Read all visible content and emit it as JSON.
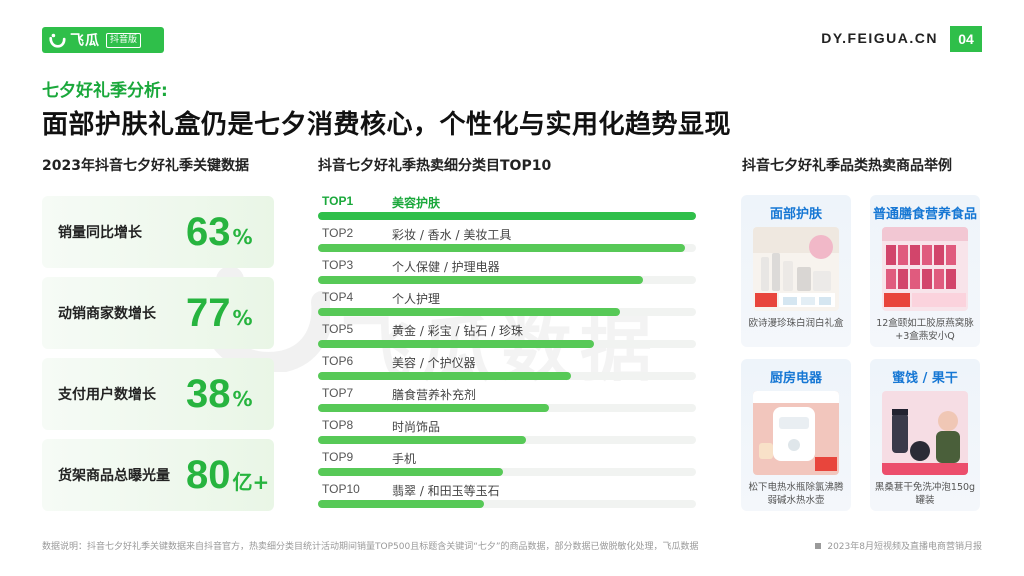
{
  "header": {
    "logo_name": "飞瓜",
    "logo_sub": "抖音版",
    "site": "DY.FEIGUA.CN",
    "page_number": "04",
    "accent": "#2fbf4a"
  },
  "kicker": "七夕好礼季分析:",
  "headline": "面部护肤礼盒仍是七夕消费核心，个性化与实用化趋势显现",
  "watermark": "飞瓜数据",
  "stats": {
    "title": "2023年抖音七夕好礼季关键数据",
    "items": [
      {
        "label": "销量同比增长",
        "value": "63",
        "unit": "%"
      },
      {
        "label": "动销商家数增长",
        "value": "77",
        "unit": "%"
      },
      {
        "label": "支付用户数增长",
        "value": "38",
        "unit": "%"
      },
      {
        "label": "货架商品总曝光量",
        "value": "80",
        "unit": "亿+"
      }
    ]
  },
  "ranking": {
    "title": "抖音七夕好礼季热卖细分类目TOP10",
    "items": [
      {
        "rank": "TOP1",
        "name": "美容护肤",
        "level": 1.0
      },
      {
        "rank": "TOP2",
        "name": "彩妆 / 香水 / 美妆工具",
        "level": 0.97
      },
      {
        "rank": "TOP3",
        "name": "个人保健 / 护理电器",
        "level": 0.86
      },
      {
        "rank": "TOP4",
        "name": "个人护理",
        "level": 0.8
      },
      {
        "rank": "TOP5",
        "name": "黄金 / 彩宝 / 钻石 / 珍珠",
        "level": 0.73
      },
      {
        "rank": "TOP6",
        "name": "美容 / 个护仪器",
        "level": 0.67
      },
      {
        "rank": "TOP7",
        "name": "膳食营养补充剂",
        "level": 0.61
      },
      {
        "rank": "TOP8",
        "name": "时尚饰品",
        "level": 0.55
      },
      {
        "rank": "TOP9",
        "name": "手机",
        "level": 0.49
      },
      {
        "rank": "TOP10",
        "name": "翡翠 / 和田玉等玉石",
        "level": 0.44
      }
    ]
  },
  "products": {
    "title": "抖音七夕好礼季品类热卖商品举例",
    "items": [
      {
        "category": "面部护肤",
        "desc": "欧诗漫珍珠白润白礼盒"
      },
      {
        "category": "普通膳食营养食品",
        "desc": "12盒颐如工胶原燕窝脉+3盒燕安小Q"
      },
      {
        "category": "厨房电器",
        "desc": "松下电热水瓶除氯沸腾弱碱水热水壶"
      },
      {
        "category": "蜜饯 / 果干",
        "desc": "黑桑葚干免洗冲泡150g罐装"
      }
    ]
  },
  "footer": {
    "note": "数据说明：抖音七夕好礼季关键数据来自抖音官方，热卖细分类目统计活动期间销量TOP500且标题含关键词“七夕”的商品数据，部分数据已做脱敏化处理，飞瓜数据",
    "report": "2023年8月短视频及直播电商营销月报"
  }
}
